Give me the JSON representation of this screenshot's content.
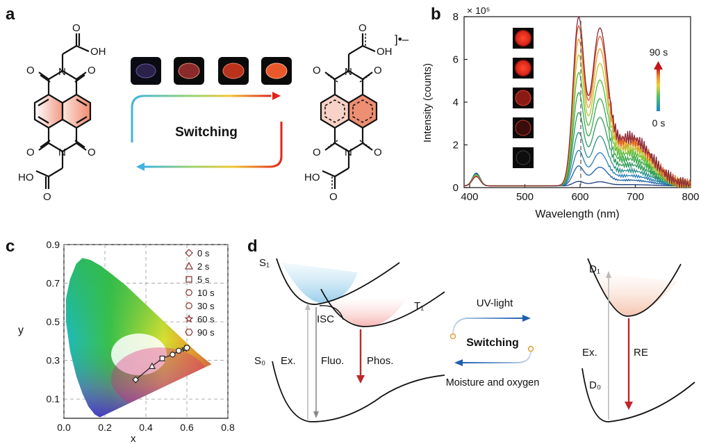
{
  "panels": {
    "a": {
      "label": "a",
      "atoms": {
        "O": "O",
        "OH": "OH",
        "HO": "HO",
        "N": "N"
      },
      "radical": "]•–",
      "switch_text": "Switching"
    },
    "b": {
      "label": "b",
      "scale_label": "× 10⁵",
      "ylabel": "Intensity (counts)",
      "xlabel": "Wavelength (nm)",
      "colorbar_top": "90 s",
      "colorbar_bottom": "0 s"
    },
    "c": {
      "label": "c",
      "xlabel": "x",
      "ylabel": "y",
      "legend": [
        "0 s",
        "2 s",
        "5 s",
        "10 s",
        "30 s",
        "60 s",
        "90 s"
      ]
    },
    "d": {
      "label": "d",
      "states": {
        "S1": "S₁",
        "T1": "T₁",
        "S0": "S₀",
        "D1": "D₁",
        "D0": "D₀"
      },
      "arrows": {
        "ex": "Ex.",
        "fluo": "Fluo.",
        "phos": "Phos.",
        "isc": "ISC",
        "re": "RE",
        "ex2": "Ex."
      },
      "switch_top": "UV-light",
      "switch_mid": "Switching",
      "switch_bottom": "Moisture and oxygen"
    }
  },
  "chart_data": [
    {
      "type": "line",
      "panel": "b",
      "xlabel": "Wavelength (nm)",
      "ylabel": "Intensity (counts)",
      "y_scale_factor": "× 10⁵",
      "xlim": [
        390,
        800
      ],
      "ylim": [
        0,
        8
      ],
      "xticks": [
        400,
        500,
        600,
        700,
        800
      ],
      "yticks": [
        0,
        2,
        4,
        6,
        8
      ],
      "series_peak_intensity_at_597nm": [
        0.2,
        0.9,
        1.6,
        2.4,
        3.3,
        4.2,
        5.1,
        5.9,
        6.6,
        7.2,
        7.6
      ],
      "peaks_nm": [
        410,
        597,
        635
      ]
    },
    {
      "type": "scatter",
      "panel": "c",
      "xlabel": "x",
      "ylabel": "y",
      "xlim": [
        0.0,
        0.8
      ],
      "ylim": [
        0.0,
        0.9
      ],
      "xticks": [
        0.0,
        0.2,
        0.4,
        0.6,
        0.8
      ],
      "yticks": [
        0.1,
        0.3,
        0.5,
        0.7,
        0.9
      ],
      "points": [
        {
          "label": "0 s",
          "x": 0.35,
          "y": 0.2
        },
        {
          "label": "2 s",
          "x": 0.43,
          "y": 0.27
        },
        {
          "label": "5 s",
          "x": 0.48,
          "y": 0.31
        },
        {
          "label": "10 s",
          "x": 0.53,
          "y": 0.33
        },
        {
          "label": "30 s",
          "x": 0.56,
          "y": 0.35
        },
        {
          "label": "60 s",
          "x": 0.59,
          "y": 0.36
        },
        {
          "label": "90 s",
          "x": 0.6,
          "y": 0.365
        }
      ]
    }
  ]
}
